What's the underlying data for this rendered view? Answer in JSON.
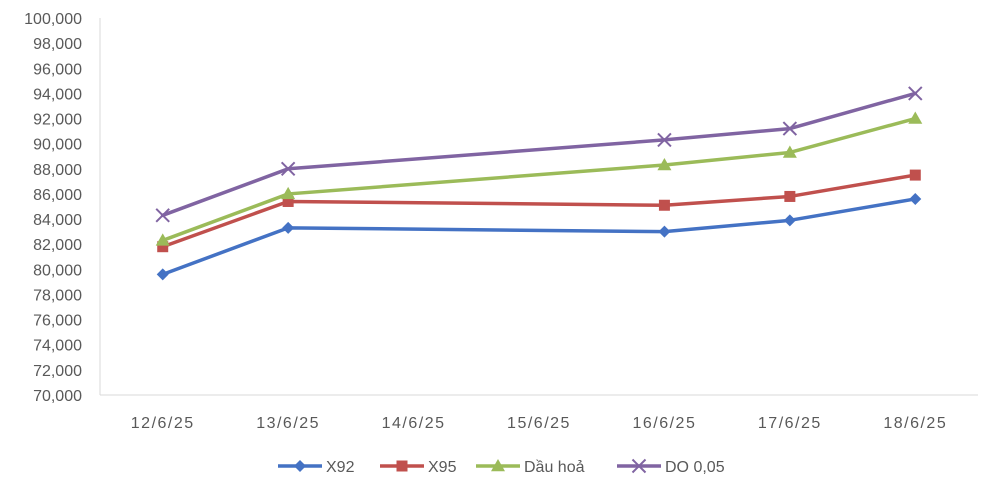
{
  "chart_data": {
    "type": "line",
    "title": "",
    "xlabel": "",
    "ylabel": "",
    "categories": [
      "12/6/25",
      "13/6/25",
      "14/6/25",
      "15/6/25",
      "16/6/25",
      "17/6/25",
      "18/6/25"
    ],
    "ylim": [
      70000,
      100000
    ],
    "ytick_step": 2000,
    "yticks": [
      "70,000",
      "72,000",
      "74,000",
      "76,000",
      "78,000",
      "80,000",
      "82,000",
      "84,000",
      "86,000",
      "88,000",
      "90,000",
      "92,000",
      "94,000",
      "96,000",
      "98,000",
      "100,000"
    ],
    "grid": false,
    "legend_position": "bottom",
    "series": [
      {
        "name": "X92",
        "color": "#4472C4",
        "marker": "diamond",
        "values": [
          79600,
          83300,
          null,
          null,
          83000,
          83900,
          85600
        ]
      },
      {
        "name": "X95",
        "color": "#C0504D",
        "marker": "square",
        "values": [
          81800,
          85400,
          null,
          null,
          85100,
          85800,
          87500
        ]
      },
      {
        "name": "Dầu hoả",
        "color": "#9BBB59",
        "marker": "triangle",
        "values": [
          82300,
          86000,
          null,
          null,
          88300,
          89300,
          92000
        ]
      },
      {
        "name": "DO 0,05",
        "color": "#8064A2",
        "marker": "x",
        "values": [
          84300,
          88000,
          null,
          null,
          90300,
          91200,
          94000
        ]
      }
    ]
  }
}
